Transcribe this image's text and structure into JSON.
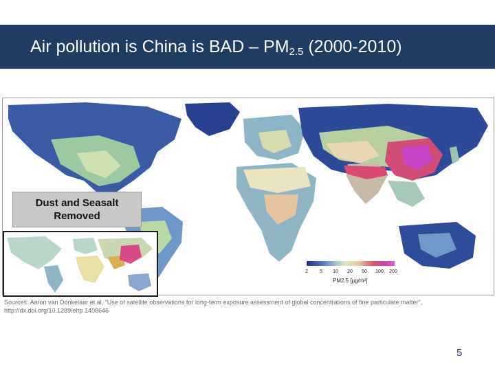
{
  "slide": {
    "title_main": "Air pollution is China is BAD – PM",
    "title_sub": "2.5",
    "title_tail": " (2000-2010)",
    "page_number": "5"
  },
  "map": {
    "inset_label_line1": "Dust and Seasalt",
    "inset_label_line2": "Removed",
    "legend": {
      "ticks": [
        "2",
        "5",
        "10",
        "20",
        "50",
        "100",
        "200"
      ],
      "unit_label": "PM2.5 [µg/m³]",
      "colors": [
        "#1d2f7a",
        "#4b6fb3",
        "#9fc2d4",
        "#e8e8b8",
        "#e7c49c",
        "#d9576a",
        "#cc3fa6",
        "#e85bd8"
      ]
    },
    "colors": {
      "ocean": "#ffffff",
      "low": "#1e2f7e",
      "mid": "#9fc5a0",
      "high": "#d84060",
      "very_high": "#c845c8"
    }
  },
  "source": {
    "line1": "Sources: Aaron van Donkelaar et al, \"Use of satellite observations for long-term exposure assessment of global concentrations of fine particulate matter\",",
    "line2": "http://dx.doi.org/10.1289/ehp.1408646"
  }
}
